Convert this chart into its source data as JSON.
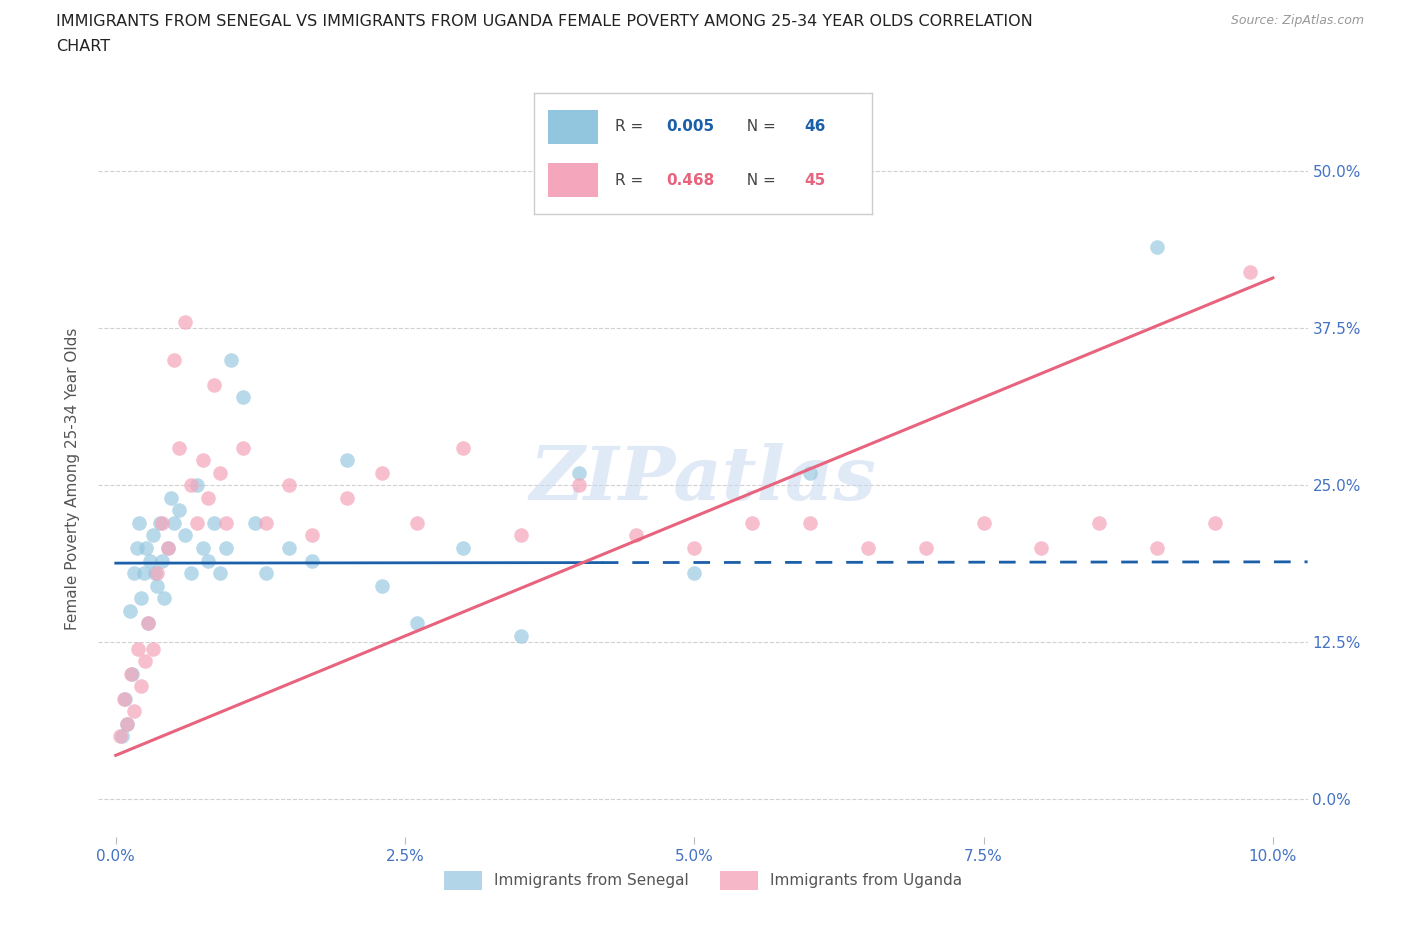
{
  "title_line1": "IMMIGRANTS FROM SENEGAL VS IMMIGRANTS FROM UGANDA FEMALE POVERTY AMONG 25-34 YEAR OLDS CORRELATION",
  "title_line2": "CHART",
  "source": "Source: ZipAtlas.com",
  "xlabel_ticks": [
    0.0,
    2.5,
    5.0,
    7.5,
    10.0
  ],
  "ylabel_ticks": [
    0.0,
    12.5,
    25.0,
    37.5,
    50.0
  ],
  "xlim": [
    -0.15,
    10.3
  ],
  "ylim": [
    -3,
    54
  ],
  "ylabel": "Female Poverty Among 25-34 Year Olds",
  "senegal_color": "#92c5de",
  "uganda_color": "#f4a6bc",
  "senegal_line_color": "#1a5fa8",
  "uganda_line_color": "#e8637d",
  "bg_color": "#ffffff",
  "grid_color": "#cccccc",
  "tick_color": "#4472c4",
  "title_color": "#222222",
  "title_fontsize": 11.5,
  "axis_label_color": "#555555",
  "watermark": "ZIPatlas",
  "watermark_color": "#c8d8f0",
  "senegal_R": "0.005",
  "senegal_N": "46",
  "uganda_R": "0.468",
  "uganda_N": "45",
  "senegal_x": [
    0.05,
    0.08,
    0.1,
    0.12,
    0.14,
    0.16,
    0.18,
    0.2,
    0.22,
    0.24,
    0.26,
    0.28,
    0.3,
    0.32,
    0.34,
    0.36,
    0.38,
    0.4,
    0.42,
    0.45,
    0.48,
    0.5,
    0.55,
    0.6,
    0.65,
    0.7,
    0.75,
    0.8,
    0.85,
    0.9,
    0.95,
    1.0,
    1.1,
    1.2,
    1.3,
    1.5,
    1.7,
    2.0,
    2.3,
    2.6,
    3.0,
    3.5,
    4.0,
    5.0,
    6.0,
    9.0
  ],
  "senegal_y": [
    5.0,
    8.0,
    6.0,
    15.0,
    10.0,
    18.0,
    20.0,
    22.0,
    16.0,
    18.0,
    20.0,
    14.0,
    19.0,
    21.0,
    18.0,
    17.0,
    22.0,
    19.0,
    16.0,
    20.0,
    24.0,
    22.0,
    23.0,
    21.0,
    18.0,
    25.0,
    20.0,
    19.0,
    22.0,
    18.0,
    20.0,
    35.0,
    32.0,
    22.0,
    18.0,
    20.0,
    19.0,
    27.0,
    17.0,
    14.0,
    20.0,
    13.0,
    26.0,
    18.0,
    26.0,
    44.0
  ],
  "uganda_x": [
    0.04,
    0.07,
    0.1,
    0.13,
    0.16,
    0.19,
    0.22,
    0.25,
    0.28,
    0.32,
    0.36,
    0.4,
    0.45,
    0.5,
    0.55,
    0.6,
    0.65,
    0.7,
    0.75,
    0.8,
    0.85,
    0.9,
    0.95,
    1.1,
    1.3,
    1.5,
    1.7,
    2.0,
    2.3,
    2.6,
    3.0,
    3.5,
    4.0,
    4.5,
    5.0,
    5.5,
    6.0,
    6.5,
    7.0,
    7.5,
    8.0,
    8.5,
    9.0,
    9.5,
    9.8
  ],
  "uganda_y": [
    5.0,
    8.0,
    6.0,
    10.0,
    7.0,
    12.0,
    9.0,
    11.0,
    14.0,
    12.0,
    18.0,
    22.0,
    20.0,
    35.0,
    28.0,
    38.0,
    25.0,
    22.0,
    27.0,
    24.0,
    33.0,
    26.0,
    22.0,
    28.0,
    22.0,
    25.0,
    21.0,
    24.0,
    26.0,
    22.0,
    28.0,
    21.0,
    25.0,
    21.0,
    20.0,
    22.0,
    22.0,
    20.0,
    20.0,
    22.0,
    20.0,
    22.0,
    20.0,
    22.0,
    42.0
  ],
  "sen_line_solid_end": 4.2,
  "sen_line_dashed_start": 4.2,
  "sen_line_end": 10.3,
  "uga_line_start": 0.0,
  "uga_line_end": 10.0,
  "sen_line_y_intercept": 18.8,
  "sen_line_slope": 0.01,
  "uga_line_y_intercept": 3.5,
  "uga_line_slope": 3.8
}
